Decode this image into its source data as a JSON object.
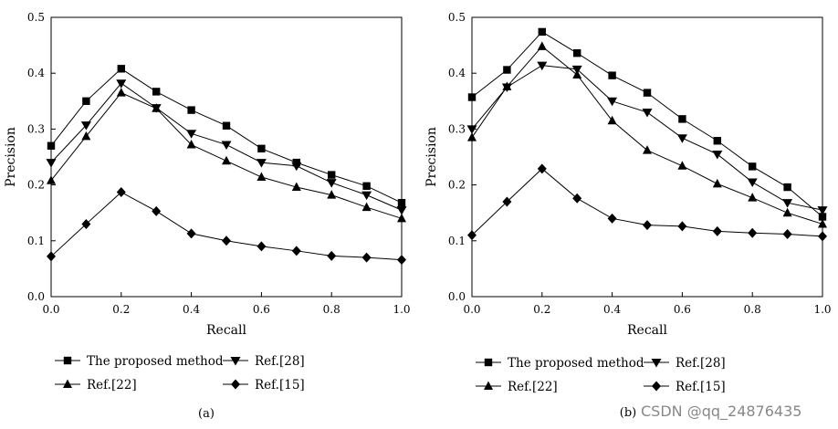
{
  "chart_data": [
    {
      "type": "line",
      "panel_label": "(a)",
      "xlabel": "Recall",
      "ylabel": "Precision",
      "xlim": [
        0.0,
        1.0
      ],
      "ylim": [
        0.0,
        0.5
      ],
      "x_ticks": [
        "0.0",
        "0.2",
        "0.4",
        "0.6",
        "0.8",
        "1.0"
      ],
      "y_ticks": [
        "0.0",
        "0.1",
        "0.2",
        "0.3",
        "0.4",
        "0.5"
      ],
      "x": [
        0.0,
        0.1,
        0.2,
        0.3,
        0.4,
        0.5,
        0.6,
        0.7,
        0.8,
        0.9,
        1.0
      ],
      "series": [
        {
          "name": "The proposed method",
          "marker": "square",
          "values": [
            0.27,
            0.35,
            0.408,
            0.367,
            0.334,
            0.306,
            0.265,
            0.24,
            0.218,
            0.198,
            0.168
          ]
        },
        {
          "name": "Ref.[28]",
          "marker": "triangle-down",
          "values": [
            0.24,
            0.307,
            0.382,
            0.338,
            0.292,
            0.272,
            0.24,
            0.234,
            0.204,
            0.182,
            0.155
          ]
        },
        {
          "name": "Ref.[22]",
          "marker": "triangle-up",
          "values": [
            0.208,
            0.287,
            0.365,
            0.337,
            0.272,
            0.243,
            0.214,
            0.196,
            0.182,
            0.16,
            0.14
          ]
        },
        {
          "name": "Ref.[15]",
          "marker": "diamond",
          "values": [
            0.072,
            0.13,
            0.187,
            0.153,
            0.113,
            0.1,
            0.09,
            0.082,
            0.073,
            0.07,
            0.066
          ]
        }
      ]
    },
    {
      "type": "line",
      "panel_label": "(b)",
      "xlabel": "Recall",
      "ylabel": "Precision",
      "xlim": [
        0.0,
        1.0
      ],
      "ylim": [
        0.0,
        0.5
      ],
      "x_ticks": [
        "0.0",
        "0.2",
        "0.4",
        "0.6",
        "0.8",
        "1.0"
      ],
      "y_ticks": [
        "0.0",
        "0.1",
        "0.2",
        "0.3",
        "0.4",
        "0.5"
      ],
      "x": [
        0.0,
        0.1,
        0.2,
        0.3,
        0.4,
        0.5,
        0.6,
        0.7,
        0.8,
        0.9,
        1.0
      ],
      "series": [
        {
          "name": "The proposed method",
          "marker": "square",
          "values": [
            0.357,
            0.406,
            0.474,
            0.436,
            0.396,
            0.365,
            0.318,
            0.279,
            0.233,
            0.196,
            0.143
          ]
        },
        {
          "name": "Ref.[28]",
          "marker": "triangle-down",
          "values": [
            0.3,
            0.375,
            0.414,
            0.407,
            0.35,
            0.33,
            0.284,
            0.255,
            0.205,
            0.168,
            0.155
          ]
        },
        {
          "name": "Ref.[22]",
          "marker": "triangle-up",
          "values": [
            0.285,
            0.376,
            0.448,
            0.397,
            0.315,
            0.262,
            0.234,
            0.202,
            0.177,
            0.15,
            0.13
          ]
        },
        {
          "name": "Ref.[15]",
          "marker": "diamond",
          "values": [
            0.11,
            0.17,
            0.229,
            0.176,
            0.14,
            0.128,
            0.126,
            0.117,
            0.114,
            0.112,
            0.108
          ]
        }
      ]
    }
  ],
  "watermark": "CSDN @qq_24876435"
}
